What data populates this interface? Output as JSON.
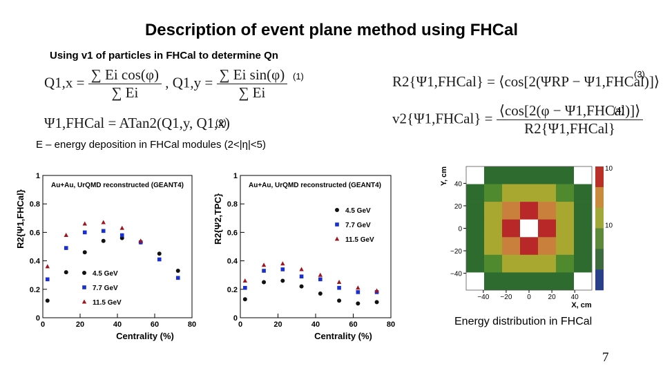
{
  "slide": {
    "title": "Description of event plane method using FHCal",
    "subtitle": "Using v1 of particles in FHCal to determine Qn",
    "energy_note": "E – energy deposition in FHCal modules (2<|η|<5)",
    "caption": "Energy distribution in FHCal",
    "page_number": "7"
  },
  "equations": {
    "eq1": {
      "q1x": "Q1,x =",
      "mid": ", Q1,y =",
      "num_x": "∑ Ei cos(φ)",
      "num_y": "∑ Ei sin(φ)",
      "den": "∑ Ei",
      "label": "(1)"
    },
    "eq2": {
      "text": "Ψ1,FHCal = ATan2(Q1,y, Q1,x)",
      "label": "(2)"
    },
    "eq3": {
      "text": "R2{Ψ1,FHCal} = ⟨cos[2(ΨRP − Ψ1,FHCal)]⟩",
      "label": "(3)"
    },
    "eq4": {
      "lhs": "v2{Ψ1,FHCal} =",
      "num": "⟨cos[2(φ − Ψ1,FHCal)]⟩",
      "den": "R2{Ψ1,FHCal}",
      "label": "(4)"
    }
  },
  "chart_data": [
    {
      "type": "scatter",
      "title": "Au+Au, UrQMD reconstructed (GEANT4)",
      "xlabel": "Centrality (%)",
      "ylabel": "R2{Ψ1,FHCal}",
      "xlim": [
        0,
        80
      ],
      "ylim": [
        0,
        1
      ],
      "xticks": [
        0,
        20,
        40,
        60,
        80
      ],
      "yticks": [
        0,
        0.2,
        0.4,
        0.6,
        0.8,
        1
      ],
      "legend_position": "bottom-left",
      "x": [
        2.5,
        12.5,
        22.5,
        32.5,
        42.5,
        52.5,
        62.5,
        72.5
      ],
      "series": [
        {
          "name": "4.5 GeV",
          "marker": "circle",
          "color": "#111111",
          "x": [
            2.5,
            12.5,
            22.5,
            32.5,
            42.5,
            52.5,
            62.5,
            72.5
          ],
          "values": [
            0.12,
            0.32,
            0.46,
            0.54,
            0.56,
            0.53,
            0.45,
            0.33
          ]
        },
        {
          "name": "7.7 GeV",
          "marker": "square",
          "color": "#1a2fd0",
          "x": [
            2.5,
            12.5,
            22.5,
            32.5,
            42.5,
            52.5,
            62.5,
            72.5
          ],
          "values": [
            0.27,
            0.49,
            0.6,
            0.61,
            0.58,
            0.53,
            0.41,
            0.28
          ]
        },
        {
          "name": "11.5 GeV",
          "marker": "triangle",
          "color": "#a0141e",
          "x": [
            2.5,
            12.5,
            22.5,
            32.5,
            42.5,
            52.5
          ],
          "values": [
            0.36,
            0.58,
            0.66,
            0.67,
            0.63,
            0.54
          ]
        }
      ]
    },
    {
      "type": "scatter",
      "title": "Au+Au, UrQMD reconstructed (GEANT4)",
      "xlabel": "Centrality (%)",
      "ylabel": "R2{Ψ2,TPC}",
      "xlim": [
        0,
        80
      ],
      "ylim": [
        0,
        1
      ],
      "xticks": [
        0,
        20,
        40,
        60,
        80
      ],
      "yticks": [
        0,
        0.2,
        0.4,
        0.6,
        0.8,
        1
      ],
      "legend_position": "top-right",
      "x": [
        2.5,
        12.5,
        22.5,
        32.5,
        42.5,
        52.5,
        62.5,
        72.5
      ],
      "series": [
        {
          "name": "4.5 GeV",
          "marker": "circle",
          "color": "#111111",
          "values": [
            0.13,
            0.25,
            0.26,
            0.22,
            0.17,
            0.12,
            0.1,
            0.11
          ]
        },
        {
          "name": "7.7 GeV",
          "marker": "square",
          "color": "#1a2fd0",
          "values": [
            0.21,
            0.33,
            0.34,
            0.29,
            0.27,
            0.21,
            0.18,
            0.18
          ]
        },
        {
          "name": "11.5 GeV",
          "marker": "triangle",
          "color": "#a0141e",
          "values": [
            0.26,
            0.37,
            0.38,
            0.34,
            0.3,
            0.25,
            0.21,
            0.19
          ]
        }
      ]
    },
    {
      "type": "heatmap",
      "xlabel": "X, cm",
      "ylabel": "Y, cm",
      "xticks": [
        -40,
        -20,
        0,
        20,
        40
      ],
      "yticks": [
        -40,
        -20,
        0,
        20,
        40
      ],
      "xlim": [
        -55,
        55
      ],
      "ylim": [
        -55,
        55
      ],
      "colorbar_labels": [
        "10",
        "10"
      ],
      "cells": [
        [
          0,
          1,
          1,
          1,
          1,
          1,
          0
        ],
        [
          1,
          2,
          3,
          3,
          3,
          2,
          1
        ],
        [
          1,
          3,
          4,
          5,
          4,
          3,
          1
        ],
        [
          1,
          3,
          5,
          -1,
          5,
          3,
          1
        ],
        [
          1,
          3,
          4,
          5,
          4,
          3,
          1
        ],
        [
          1,
          2,
          3,
          3,
          3,
          2,
          1
        ],
        [
          0,
          1,
          1,
          1,
          1,
          1,
          0
        ]
      ],
      "palette": [
        "#ffffff",
        "#2e6b2e",
        "#4f8a2e",
        "#a8a830",
        "#c8803c",
        "#b82828"
      ]
    }
  ]
}
